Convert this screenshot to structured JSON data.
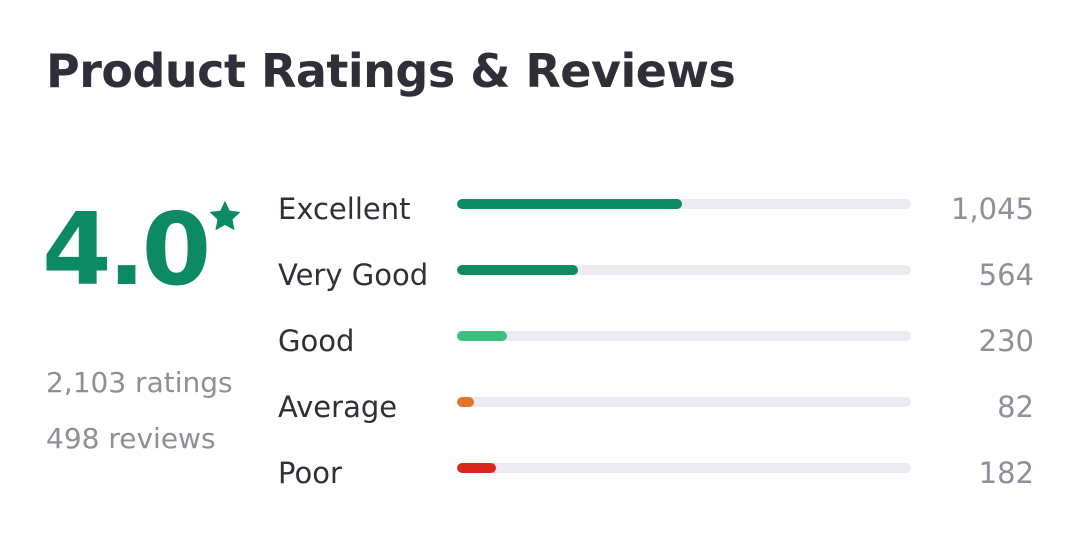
{
  "title": "Product Ratings & Reviews",
  "summary": {
    "average": "4.0",
    "star_icon": "star-icon",
    "ratings_text": "2,103 ratings",
    "reviews_text": "498 reviews"
  },
  "breakdown": [
    {
      "label": "Excellent",
      "count": "1,045",
      "fill_fraction": 0.495,
      "color": "#0b8a63"
    },
    {
      "label": "Very Good",
      "count": "564",
      "fill_fraction": 0.267,
      "color": "#0b8a63"
    },
    {
      "label": "Good",
      "count": "230",
      "fill_fraction": 0.11,
      "color": "#3bbf7f"
    },
    {
      "label": "Average",
      "count": "82",
      "fill_fraction": 0.037,
      "color": "#e2742a"
    },
    {
      "label": "Poor",
      "count": "182",
      "fill_fraction": 0.086,
      "color": "#d8281e"
    }
  ],
  "colors": {
    "accent": "#0b8a63",
    "track": "#ebebf1",
    "text_dark": "#2f2f3a",
    "text_muted": "#8d8f9b"
  }
}
